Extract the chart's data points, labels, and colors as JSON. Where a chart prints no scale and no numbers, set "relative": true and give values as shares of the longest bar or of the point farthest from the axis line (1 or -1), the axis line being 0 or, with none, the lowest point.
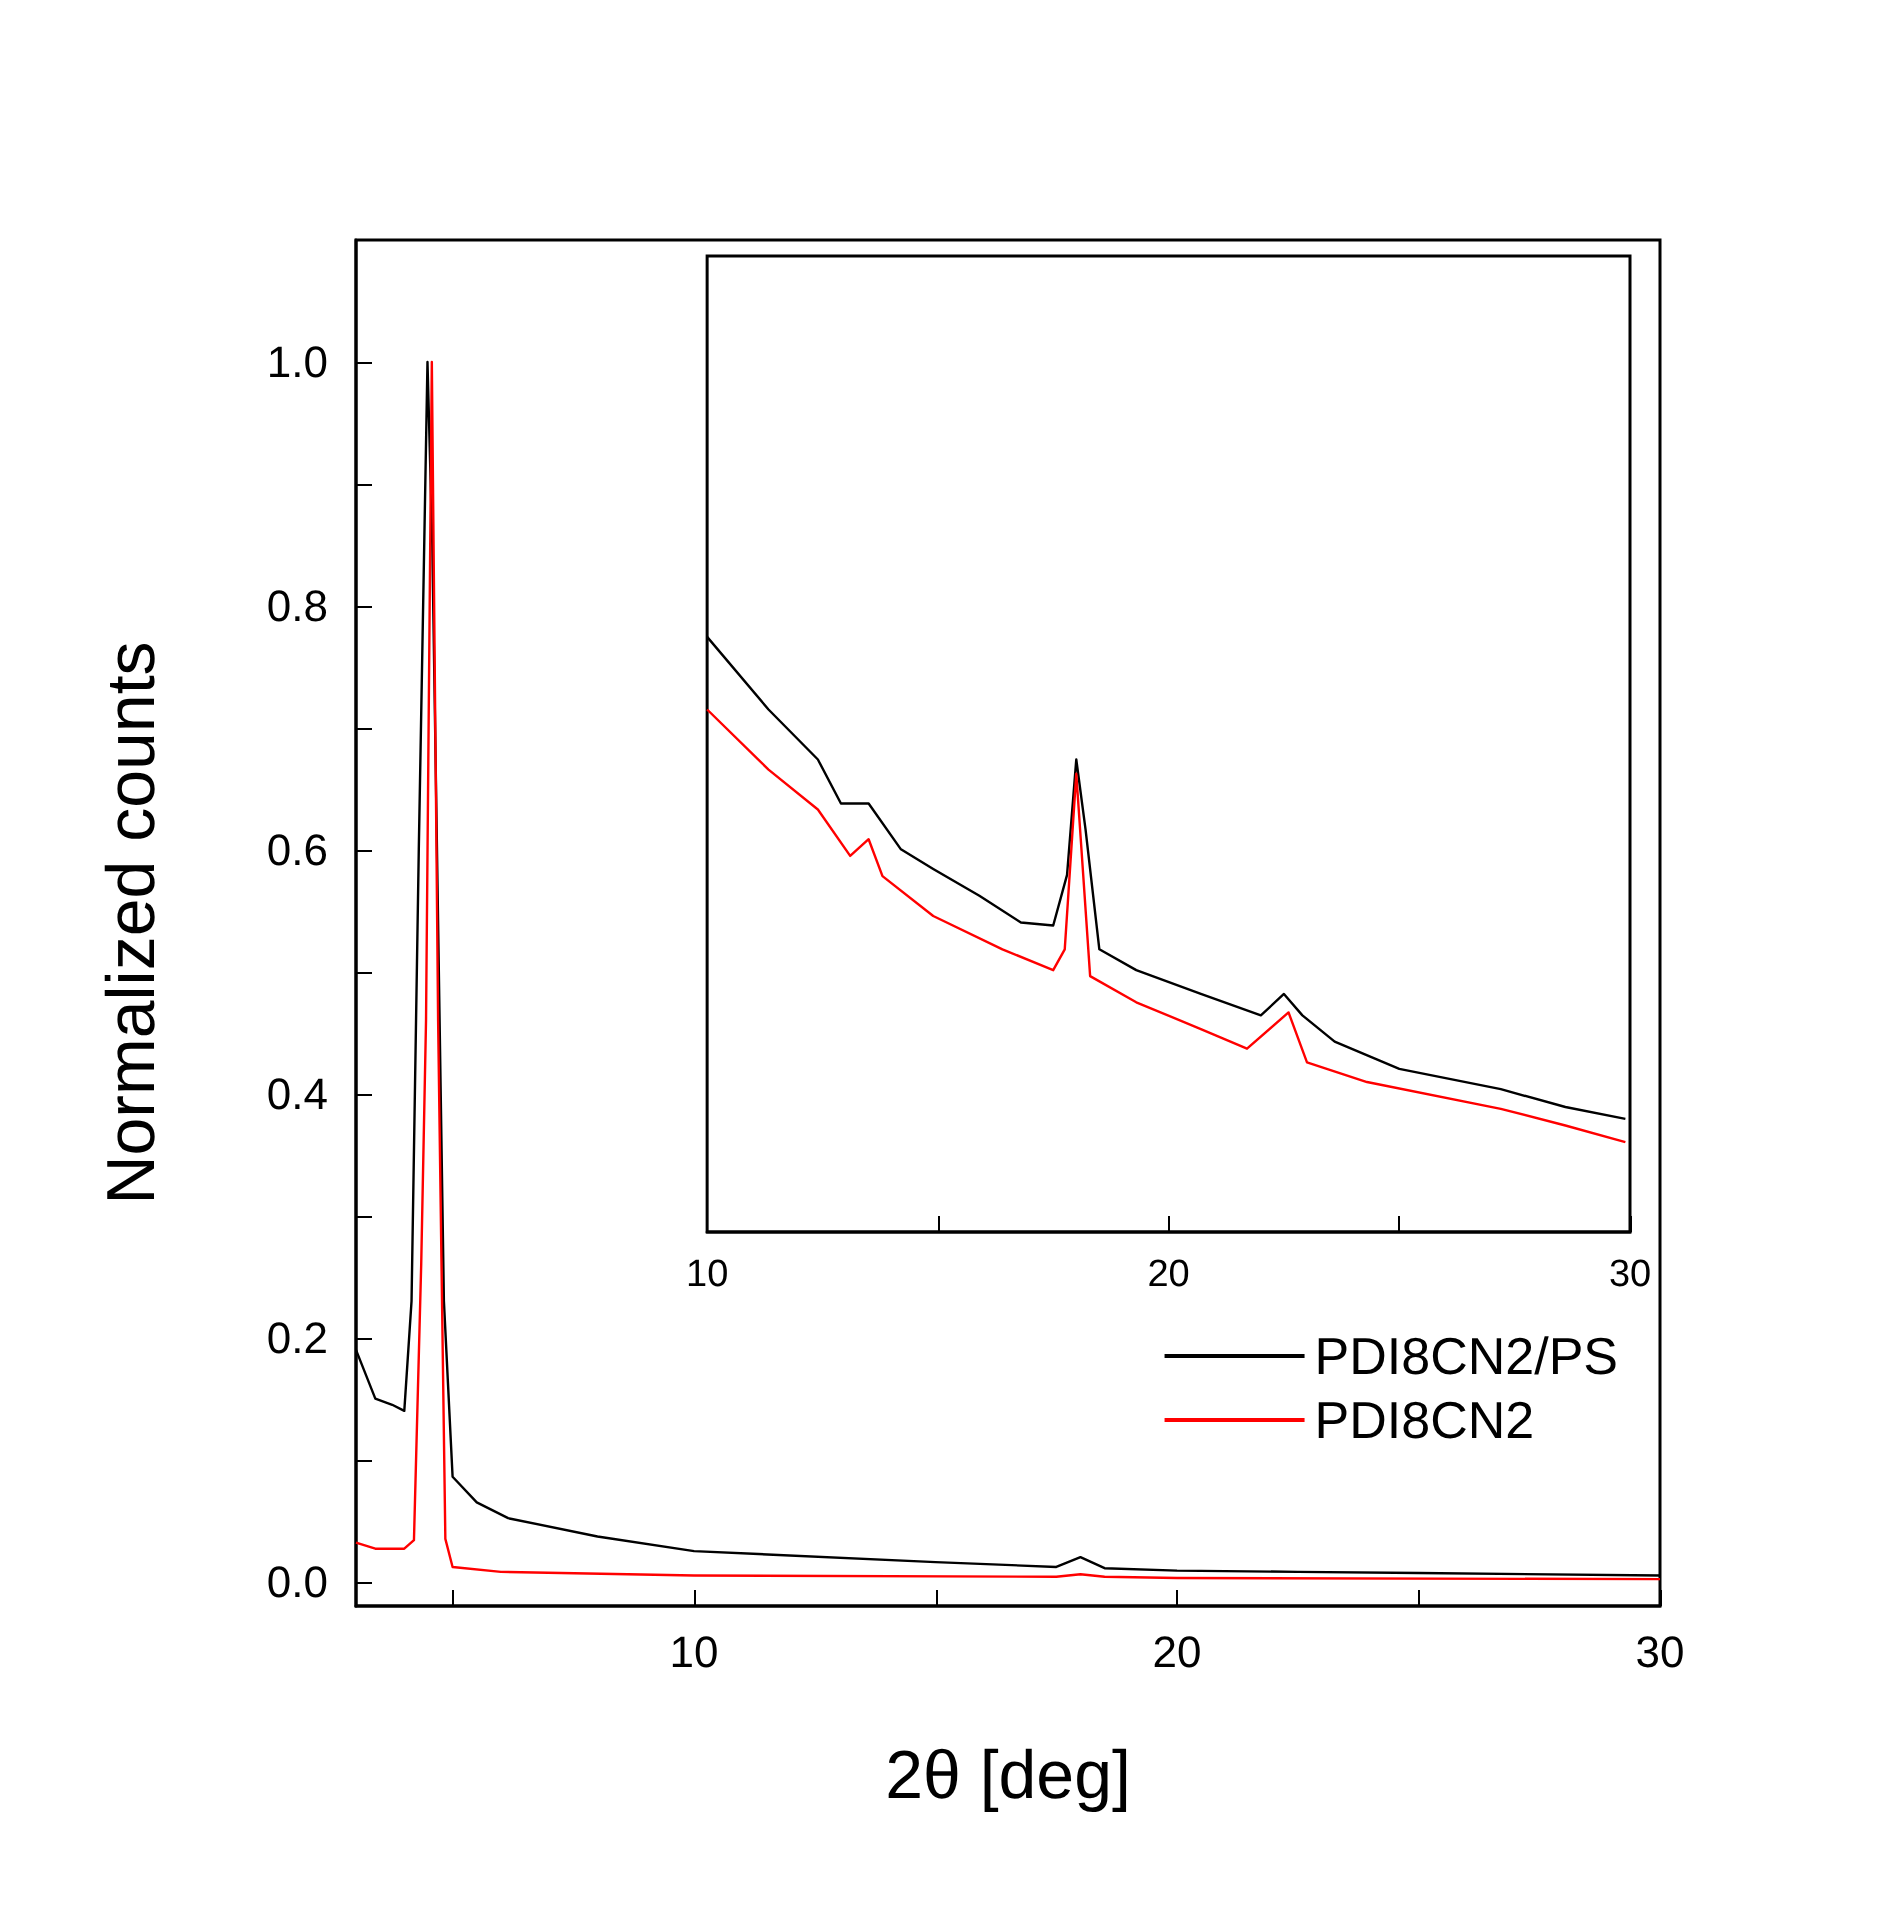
{
  "chart_data": [
    {
      "type": "line",
      "xlabel": "2θ [deg]",
      "ylabel": "Normalized counts",
      "xlim": [
        3,
        30
      ],
      "ylim": [
        -0.02,
        1.1
      ],
      "xticks": [
        {
          "value": 5,
          "label": null
        },
        10,
        {
          "value": 15,
          "label": null
        },
        20,
        {
          "value": 25,
          "label": null
        },
        30
      ],
      "yticks": [
        {
          "value": 0,
          "label": "0.0"
        },
        {
          "value": 0.1,
          "label": null
        },
        0.2,
        {
          "value": 0.3,
          "label": null
        },
        0.4,
        {
          "value": 0.5,
          "label": null
        },
        0.6,
        {
          "value": 0.7,
          "label": null
        },
        0.8,
        {
          "value": 0.9,
          "label": null
        },
        {
          "value": 1,
          "label": "1.0"
        }
      ],
      "legend": "bottom right",
      "grid": false,
      "series": [
        {
          "name": "PDI8CN2/PS",
          "color": "#000000",
          "x": [
            3.0,
            3.4,
            3.75,
            4.0,
            4.15,
            4.3,
            4.48,
            4.58,
            4.82,
            5.0,
            5.5,
            6.15,
            8.0,
            10,
            15,
            17.5,
            18,
            18.5,
            20,
            22.5,
            25,
            30
          ],
          "values": [
            0.19,
            0.15,
            0.145,
            0.14,
            0.23,
            0.6,
            1.0,
            0.85,
            0.23,
            0.086,
            0.065,
            0.052,
            0.037,
            0.025,
            0.016,
            0.012,
            0.02,
            0.011,
            0.009,
            0.008,
            0.007,
            0.005
          ]
        },
        {
          "name": "PDI8CN2",
          "color": "#ff0000",
          "x": [
            3.0,
            3.4,
            4.0,
            4.2,
            4.35,
            4.45,
            4.57,
            4.7,
            4.85,
            5.0,
            6.0,
            10,
            17.5,
            18,
            18.5,
            20,
            30
          ],
          "values": [
            0.032,
            0.027,
            0.027,
            0.034,
            0.26,
            0.46,
            1.0,
            0.46,
            0.035,
            0.012,
            0.008,
            0.005,
            0.004,
            0.006,
            0.004,
            0.003,
            0.002
          ]
        }
      ]
    },
    {
      "type": "line",
      "relative": true,
      "xlim": [
        10,
        30
      ],
      "xticks": [
        10,
        {
          "value": 15,
          "label": null
        },
        20,
        {
          "value": 25,
          "label": null
        },
        30
      ],
      "tick_labels": "x",
      "grid": false,
      "series": [
        {
          "color": "#000000",
          "x": [
            10.0,
            11.33,
            12.4,
            12.9,
            13.5,
            14.2,
            14.9,
            15.9,
            16.8,
            17.5,
            17.8,
            18.0,
            18.2,
            18.5,
            19.3,
            20.7,
            22.0,
            22.5,
            22.9,
            23.6,
            25.0,
            27.2,
            28.6,
            29.9
          ],
          "values": [
            1.0,
            0.878,
            0.794,
            0.72,
            0.72,
            0.643,
            0.61,
            0.565,
            0.52,
            0.515,
            0.6,
            0.794,
            0.677,
            0.475,
            0.44,
            0.4,
            0.364,
            0.4,
            0.364,
            0.32,
            0.274,
            0.24,
            0.21,
            0.19
          ]
        },
        {
          "color": "#ff0000",
          "x": [
            10.0,
            11.33,
            12.4,
            13.1,
            13.5,
            13.8,
            14.9,
            16.4,
            17.5,
            17.75,
            18.0,
            18.3,
            19.3,
            20.7,
            21.7,
            22.6,
            23.0,
            24.3,
            27.2,
            28.6,
            29.9
          ],
          "values": [
            0.878,
            0.777,
            0.71,
            0.632,
            0.66,
            0.598,
            0.531,
            0.475,
            0.44,
            0.475,
            0.77,
            0.43,
            0.386,
            0.341,
            0.308,
            0.369,
            0.285,
            0.252,
            0.207,
            0.179,
            0.151
          ]
        }
      ]
    }
  ]
}
